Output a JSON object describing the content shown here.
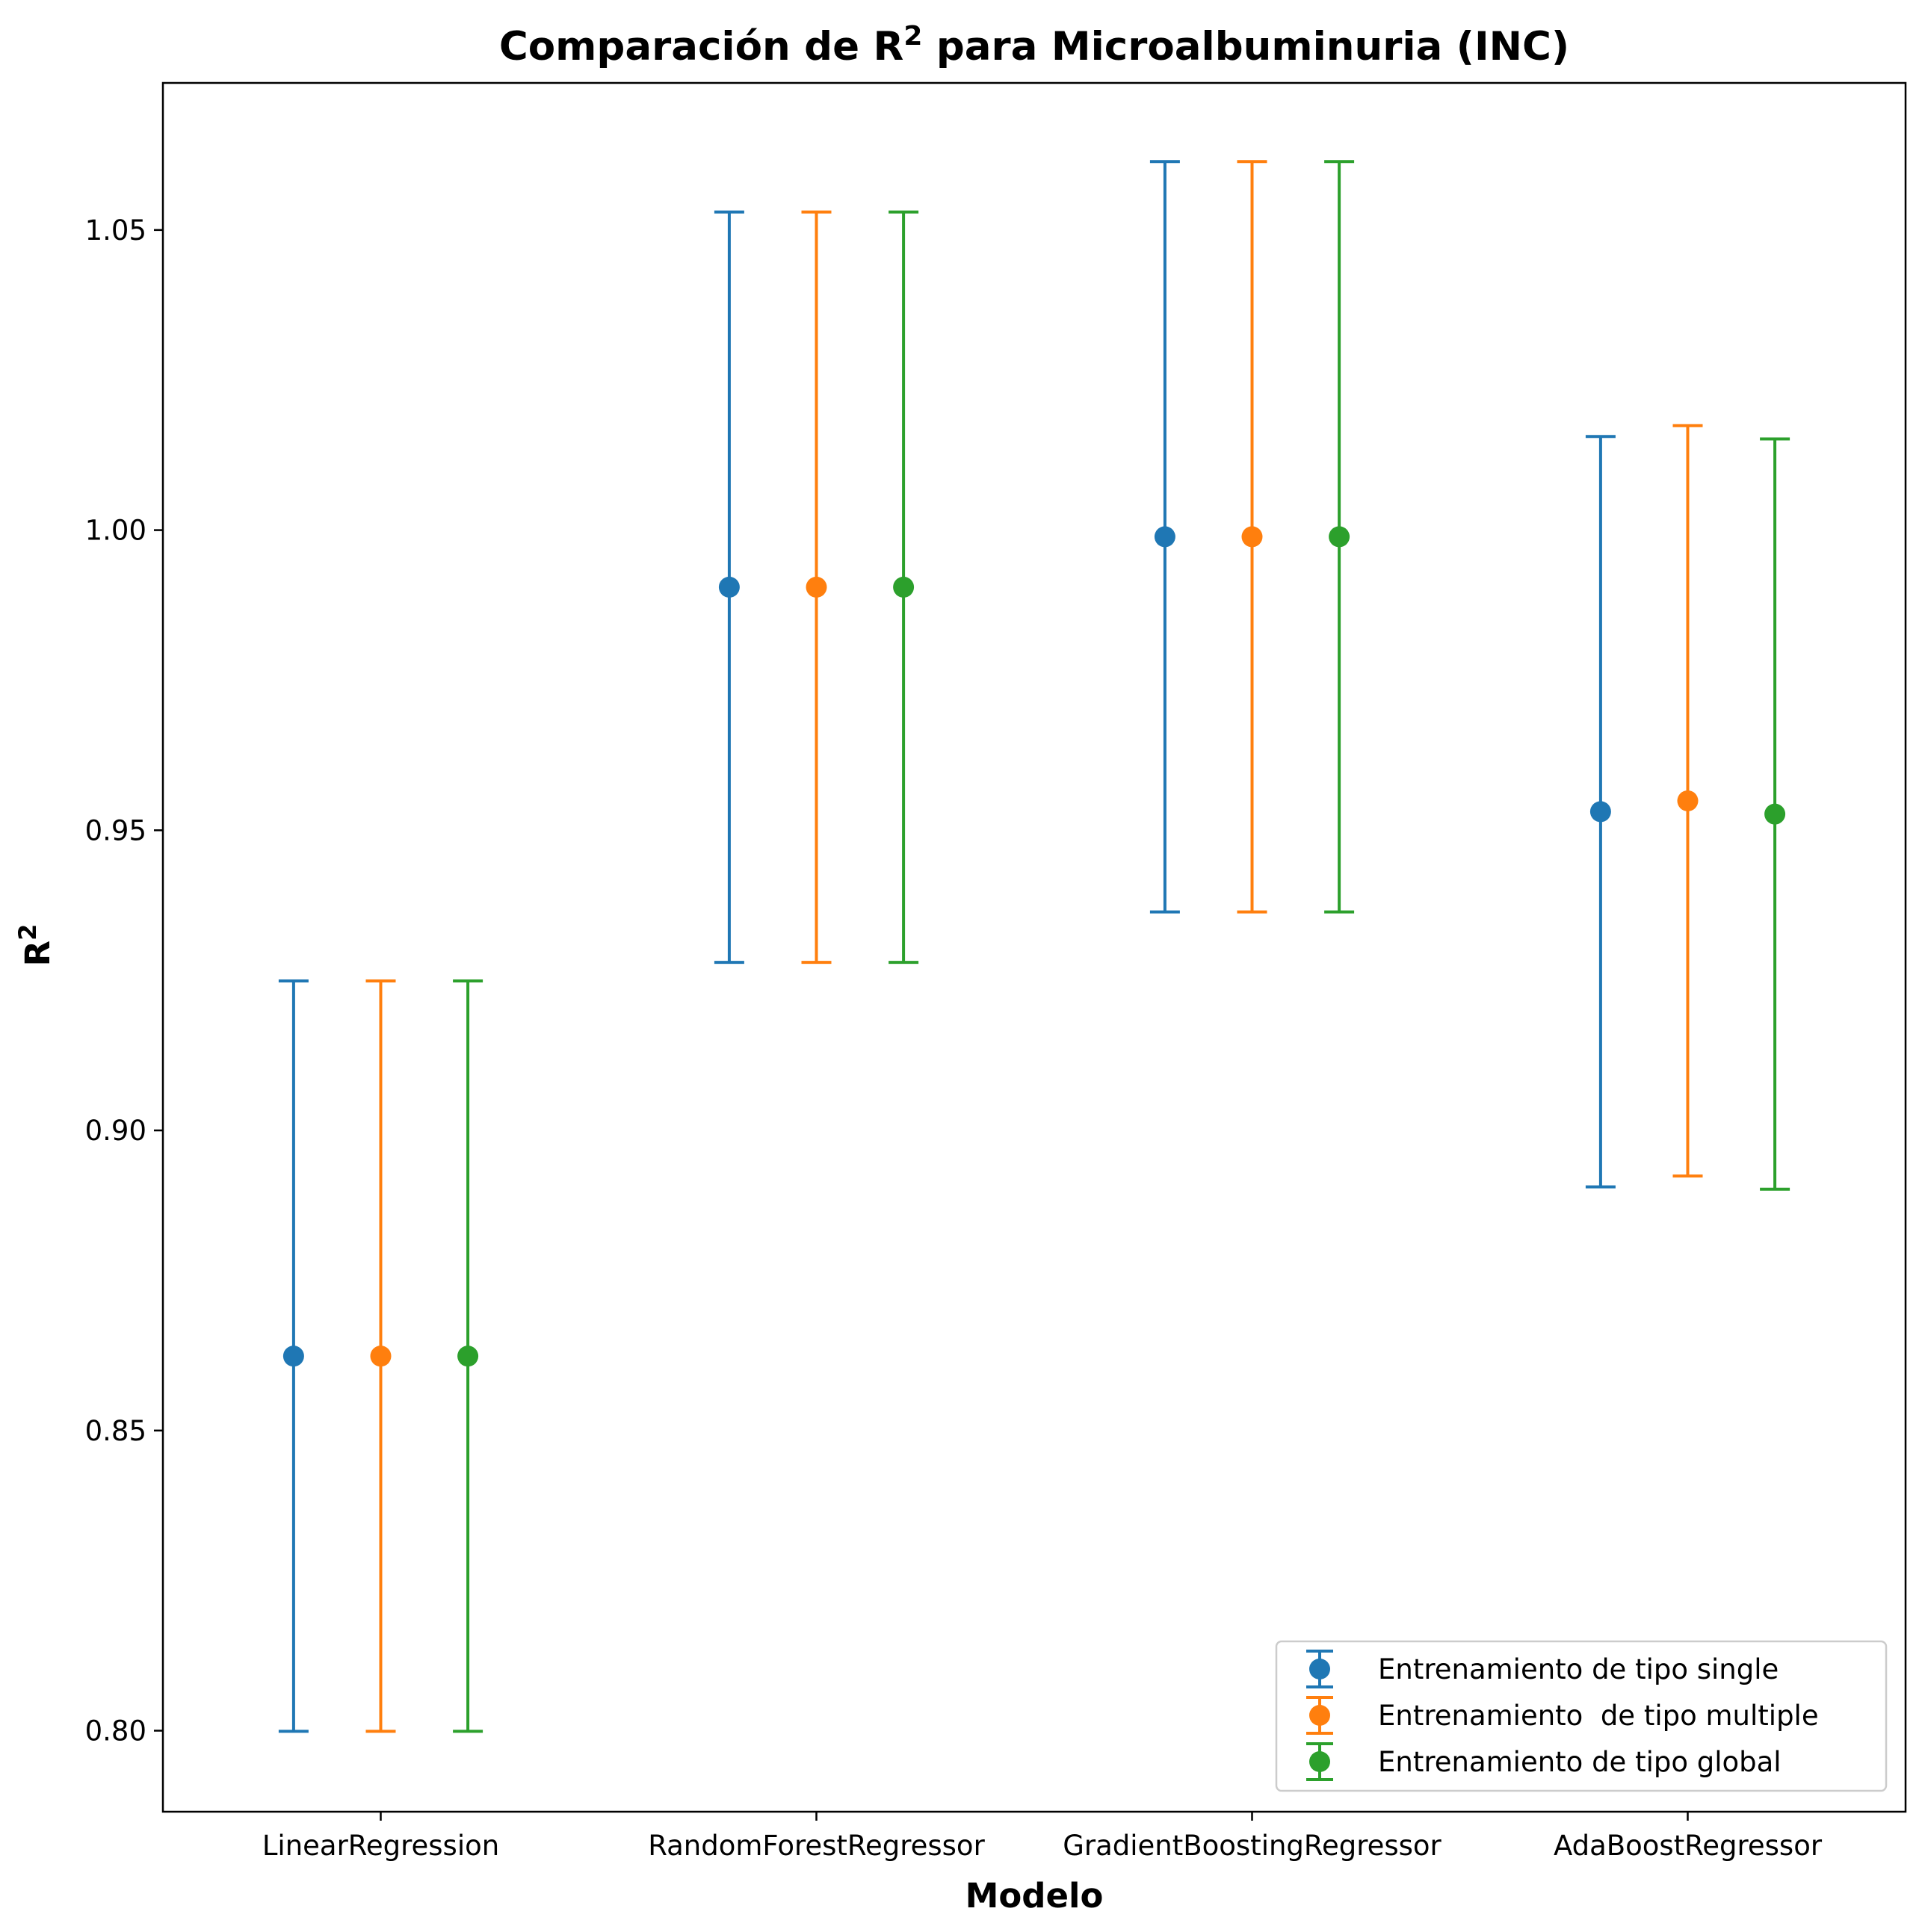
{
  "chart_data": {
    "type": "scatter",
    "subtype": "errorbar",
    "title": "Comparación de R",
    "title_sup": "2",
    "title_rest": " para Microalbuminuria (INC)",
    "xlabel": "Modelo",
    "ylabel": "R",
    "ylabel_sup": "2",
    "categories": [
      "LinearRegression",
      "RandomForestRegressor",
      "GradientBoostingRegressor",
      "AdaBoostRegressor"
    ],
    "ylim": [
      0.7865,
      1.0745
    ],
    "yticks": [
      0.8,
      0.85,
      0.9,
      0.95,
      1.0,
      1.05
    ],
    "ytick_labels": [
      "0.80",
      "0.85",
      "0.90",
      "0.95",
      "1.00",
      "1.05"
    ],
    "grid": false,
    "legend_position": "bottom-right",
    "series": [
      {
        "name": "Entrenamiento de tipo single",
        "color": "#1f77b4",
        "values": [
          0.8624,
          0.9905,
          0.9989,
          0.9531
        ],
        "errors": [
          0.0625,
          0.0625,
          0.0625,
          0.0625
        ]
      },
      {
        "name": "Entrenamiento  de tipo multiple",
        "color": "#ff7f0e",
        "values": [
          0.8624,
          0.9905,
          0.9989,
          0.9549
        ],
        "errors": [
          0.0625,
          0.0625,
          0.0625,
          0.0625
        ]
      },
      {
        "name": "Entrenamiento de tipo global",
        "color": "#2ca02c",
        "values": [
          0.8624,
          0.9905,
          0.9989,
          0.9527
        ],
        "errors": [
          0.0625,
          0.0625,
          0.0625,
          0.0625
        ]
      }
    ]
  }
}
